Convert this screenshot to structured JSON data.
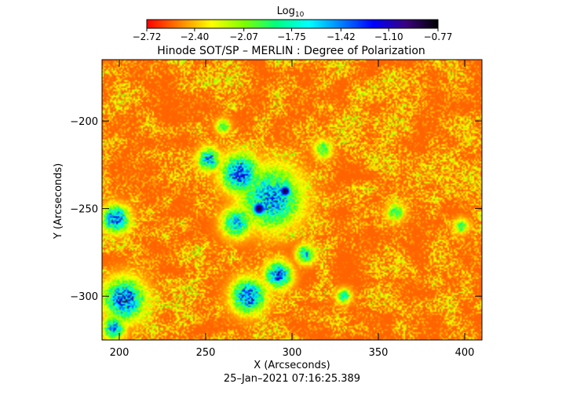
{
  "chart_data": {
    "type": "heatmap",
    "title": "Hinode SOT/SP – MERLIN : Degree of Polarization",
    "xlabel": "X (Arcseconds)",
    "ylabel": "Y (Arcseconds)",
    "xlim": [
      190,
      410
    ],
    "ylim": [
      -325,
      -165
    ],
    "xticks": [
      {
        "value": 200,
        "label": "200"
      },
      {
        "value": 250,
        "label": "250"
      },
      {
        "value": 300,
        "label": "300"
      },
      {
        "value": 350,
        "label": "350"
      },
      {
        "value": 400,
        "label": "400"
      }
    ],
    "yticks": [
      {
        "value": -200,
        "label": "−200"
      },
      {
        "value": -250,
        "label": "−250"
      },
      {
        "value": -300,
        "label": "−300"
      }
    ],
    "colorbar": {
      "title": "Log",
      "title_sub": "10",
      "range": [
        -2.72,
        -0.77
      ],
      "ticks": [
        {
          "value": -2.72,
          "label": "−2.72"
        },
        {
          "value": -2.4,
          "label": "−2.40"
        },
        {
          "value": -2.07,
          "label": "−2.07"
        },
        {
          "value": -1.75,
          "label": "−1.75"
        },
        {
          "value": -1.42,
          "label": "−1.42"
        },
        {
          "value": -1.1,
          "label": "−1.10"
        },
        {
          "value": -0.77,
          "label": "−0.77"
        }
      ],
      "colormap": [
        "#ff0000",
        "#ff7f00",
        "#ffff00",
        "#7fff00",
        "#00ff7f",
        "#00ffff",
        "#0080ff",
        "#0000ff",
        "#3a0080",
        "#000000"
      ]
    },
    "timestamp": "25–Jan–2021 07:16:25.389",
    "background_level": -2.55,
    "features": [
      {
        "kind": "sunspot",
        "x": 281,
        "y": -250,
        "r": 5,
        "level": -0.8
      },
      {
        "kind": "sunspot",
        "x": 296,
        "y": -240,
        "r": 4.5,
        "level": -0.8
      },
      {
        "kind": "plage",
        "x": 288,
        "y": -244,
        "r": 16,
        "level": -1.45
      },
      {
        "kind": "plage",
        "x": 270,
        "y": -230,
        "r": 10,
        "level": -1.3
      },
      {
        "kind": "plage",
        "x": 252,
        "y": -222,
        "r": 6,
        "level": -1.5
      },
      {
        "kind": "plage",
        "x": 268,
        "y": -258,
        "r": 8,
        "level": -1.6
      },
      {
        "kind": "plage",
        "x": 198,
        "y": -256,
        "r": 7,
        "level": -1.25
      },
      {
        "kind": "plage",
        "x": 203,
        "y": -302,
        "r": 11,
        "level": -1.3
      },
      {
        "kind": "plage",
        "x": 197,
        "y": -318,
        "r": 6,
        "level": -1.5
      },
      {
        "kind": "plage",
        "x": 275,
        "y": -300,
        "r": 9,
        "level": -1.3
      },
      {
        "kind": "plage",
        "x": 292,
        "y": -288,
        "r": 7,
        "level": -1.35
      },
      {
        "kind": "plage",
        "x": 308,
        "y": -276,
        "r": 5,
        "level": -1.6
      },
      {
        "kind": "plage",
        "x": 330,
        "y": -300,
        "r": 4,
        "level": -1.75
      },
      {
        "kind": "plage",
        "x": 360,
        "y": -252,
        "r": 5,
        "level": -1.9
      },
      {
        "kind": "plage",
        "x": 398,
        "y": -260,
        "r": 4,
        "level": -1.9
      },
      {
        "kind": "plage",
        "x": 318,
        "y": -216,
        "r": 5,
        "level": -1.9
      },
      {
        "kind": "plage",
        "x": 260,
        "y": -203,
        "r": 4,
        "level": -1.9
      }
    ]
  }
}
